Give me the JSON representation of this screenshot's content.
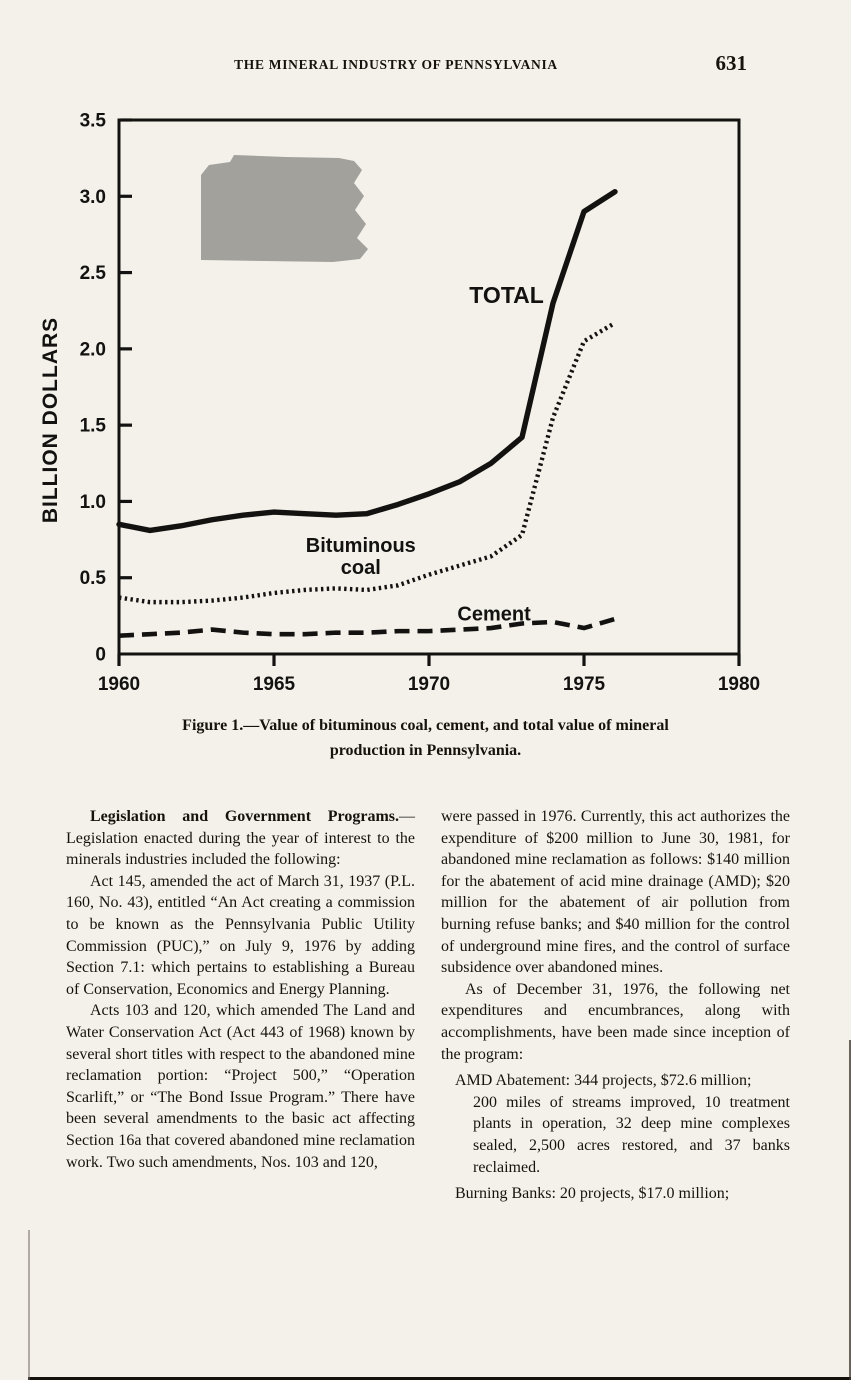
{
  "page": {
    "header_title": "THE MINERAL INDUSTRY OF PENNSYLVANIA",
    "page_number": "631"
  },
  "colors": {
    "paper": "#f3f1ea",
    "ink": "#141210",
    "silhouette_gray": "#a3a19c"
  },
  "figure": {
    "caption_line1": "Figure 1.—Value of bituminous coal, cement, and total value of mineral",
    "caption_line2": "production in Pennsylvania."
  },
  "chart_data": {
    "type": "line",
    "title": "",
    "xlabel": "",
    "ylabel": "BILLION DOLLARS",
    "xlim": [
      1960,
      1980
    ],
    "ylim": [
      0,
      3.5
    ],
    "grid": false,
    "legend_position": "inline-labels",
    "annotation": "Pennsylvania state silhouette in upper left of plot",
    "xticks": [
      1960,
      1965,
      1970,
      1975,
      1980
    ],
    "xtick_labels": [
      "1960",
      "1965",
      "1970",
      "1975",
      "1980"
    ],
    "yticks": [
      0,
      0.5,
      1.0,
      1.5,
      2.0,
      2.5,
      3.0,
      3.5
    ],
    "ytick_labels": [
      "0",
      "0.5",
      "1.0",
      "1.5",
      "2.0",
      "2.5",
      "3.0",
      "3.5"
    ],
    "x": [
      1960,
      1961,
      1962,
      1963,
      1964,
      1965,
      1966,
      1967,
      1968,
      1969,
      1970,
      1971,
      1972,
      1973,
      1974,
      1975,
      1976
    ],
    "series": [
      {
        "name": "TOTAL",
        "style": "solid",
        "values": [
          0.85,
          0.81,
          0.84,
          0.88,
          0.91,
          0.93,
          0.92,
          0.91,
          0.92,
          0.98,
          1.05,
          1.13,
          1.25,
          1.42,
          2.3,
          2.9,
          3.03
        ],
        "label": {
          "lines": [
            "TOTAL"
          ],
          "x": 1971.3,
          "y": 2.3,
          "anchor": "start",
          "size": 23
        }
      },
      {
        "name": "Bituminous coal",
        "style": "dotted",
        "values": [
          0.37,
          0.34,
          0.34,
          0.35,
          0.37,
          0.4,
          0.42,
          0.43,
          0.42,
          0.45,
          0.52,
          0.58,
          0.64,
          0.78,
          1.55,
          2.05,
          2.17
        ],
        "label": {
          "lines": [
            "Bituminous",
            "coal"
          ],
          "x": 1967.8,
          "y": 0.67,
          "anchor": "middle",
          "size": 20
        }
      },
      {
        "name": "Cement",
        "style": "dashed",
        "values": [
          0.12,
          0.13,
          0.14,
          0.16,
          0.14,
          0.13,
          0.13,
          0.14,
          0.14,
          0.15,
          0.15,
          0.16,
          0.17,
          0.2,
          0.21,
          0.17,
          0.23
        ],
        "label": {
          "lines": [
            "Cement"
          ],
          "x": 1972.1,
          "y": 0.22,
          "anchor": "middle",
          "size": 20
        }
      }
    ]
  },
  "article": {
    "left_column": [
      {
        "style": "lead",
        "bold_lead": "Legislation and Government Programs.",
        "text": "—Legislation enacted during the year of interest to the minerals industries included the following:"
      },
      {
        "style": "indent",
        "text": "Act 145, amended the act of March 31, 1937 (P.L. 160, No. 43), entitled “An Act creating a commission to be known as the Pennsylvania Public Utility Commission (PUC),” on July 9, 1976 by adding Section 7.1: which pertains to establishing a Bureau of Conservation, Economics and Energy Planning."
      },
      {
        "style": "indent",
        "text": "Acts 103 and 120, which amended The Land and Water Conservation Act (Act 443 of 1968) known by several short titles with respect to the abandoned mine reclamation portion: “Project 500,” “Operation Scarlift,” or “The Bond Issue Program.” There have been several amendments to the basic act affecting Section 16a that covered abandoned mine reclamation work. Two such amendments, Nos. 103 and 120,"
      }
    ],
    "right_column": [
      {
        "style": "noindent",
        "text": "were passed in 1976. Currently, this act authorizes the expenditure of $200 million to June 30, 1981, for abandoned mine reclamation as follows: $140 million for the abatement of acid mine drainage (AMD); $20 million for the abatement of air pollution from burning refuse banks; and $40 million for the control of underground mine fires, and the control of surface subsidence over abandoned mines."
      },
      {
        "style": "indent",
        "text": "As of December 31, 1976, the following net expenditures and encumbrances, along with accomplishments, have been made since inception of the program:"
      },
      {
        "style": "item",
        "text": "AMD Abatement: 344 projects, $72.6 million;"
      },
      {
        "style": "subitem",
        "text": "200 miles of streams improved, 10 treatment plants in operation, 32 deep mine complexes sealed, 2,500 acres restored, and 37 banks reclaimed."
      },
      {
        "style": "item",
        "text": "Burning Banks: 20 projects, $17.0 million;"
      }
    ]
  }
}
